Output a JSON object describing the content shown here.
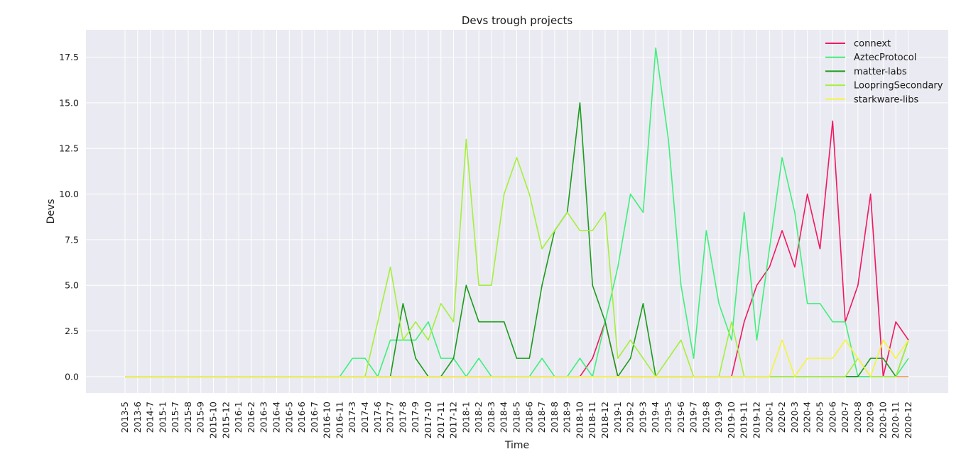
{
  "chart_data": {
    "type": "line",
    "title": "Devs trough projects",
    "xlabel": "Time",
    "ylabel": "Devs",
    "ylim": [
      -0.9,
      19.0
    ],
    "yticks": [
      0.0,
      2.5,
      5.0,
      7.5,
      10.0,
      12.5,
      15.0,
      17.5
    ],
    "ytick_labels": [
      "0.0",
      "2.5",
      "5.0",
      "7.5",
      "10.0",
      "12.5",
      "15.0",
      "17.5"
    ],
    "grid": true,
    "legend_position": "top-right",
    "categories": [
      "2013-5",
      "2013-6",
      "2014-7",
      "2015-1",
      "2015-7",
      "2015-8",
      "2015-9",
      "2015-10",
      "2015-12",
      "2016-1",
      "2016-2",
      "2016-3",
      "2016-4",
      "2016-5",
      "2016-6",
      "2016-7",
      "2016-10",
      "2016-11",
      "2017-3",
      "2017-4",
      "2017-6",
      "2017-7",
      "2017-8",
      "2017-9",
      "2017-10",
      "2017-11",
      "2017-12",
      "2018-1",
      "2018-2",
      "2018-3",
      "2018-4",
      "2018-5",
      "2018-6",
      "2018-7",
      "2018-8",
      "2018-9",
      "2018-10",
      "2018-11",
      "2018-12",
      "2019-1",
      "2019-2",
      "2019-3",
      "2019-4",
      "2019-5",
      "2019-6",
      "2019-7",
      "2019-8",
      "2019-9",
      "2019-10",
      "2019-11",
      "2019-12",
      "2020-1",
      "2020-2",
      "2020-3",
      "2020-4",
      "2020-5",
      "2020-6",
      "2020-7",
      "2020-8",
      "2020-9",
      "2020-10",
      "2020-11",
      "2020-12"
    ],
    "series": [
      {
        "name": "",
        "color": "#f7a35c",
        "values": [
          0,
          0,
          0,
          0,
          0,
          0,
          0,
          0,
          0,
          0,
          0,
          0,
          0,
          0,
          0,
          0,
          0,
          0,
          0,
          0,
          0,
          0,
          0,
          0,
          0,
          0,
          0,
          0,
          0,
          0,
          0,
          0,
          0,
          0,
          0,
          0,
          0,
          0,
          0,
          0,
          0,
          0,
          0,
          0,
          0,
          0,
          0,
          0,
          0,
          0,
          0,
          0,
          0,
          0,
          0,
          0,
          0,
          0,
          0,
          0,
          0,
          0,
          0
        ]
      },
      {
        "name": "connext",
        "color": "#f0185f",
        "values": [
          0,
          0,
          0,
          0,
          0,
          0,
          0,
          0,
          0,
          0,
          0,
          0,
          0,
          0,
          0,
          0,
          0,
          0,
          0,
          0,
          0,
          0,
          0,
          0,
          0,
          0,
          0,
          0,
          0,
          0,
          0,
          0,
          0,
          0,
          0,
          0,
          0,
          1,
          3,
          0,
          0,
          0,
          0,
          0,
          0,
          0,
          0,
          0,
          0,
          3,
          5,
          6,
          8,
          6,
          10,
          7,
          14,
          3,
          5,
          10,
          0,
          3,
          2
        ]
      },
      {
        "name": "AztecProtocol",
        "color": "#3ef07a",
        "values": [
          0,
          0,
          0,
          0,
          0,
          0,
          0,
          0,
          0,
          0,
          0,
          0,
          0,
          0,
          0,
          0,
          0,
          0,
          1,
          1,
          0,
          2,
          2,
          2,
          3,
          1,
          1,
          0,
          1,
          0,
          0,
          0,
          0,
          1,
          0,
          0,
          1,
          0,
          3,
          6,
          10,
          9,
          18,
          13,
          5,
          1,
          8,
          4,
          2,
          9,
          2,
          7,
          12,
          9,
          4,
          4,
          3,
          3,
          0,
          0,
          0,
          0,
          1
        ]
      },
      {
        "name": "matter-labs",
        "color": "#1a9c1a",
        "values": [
          0,
          0,
          0,
          0,
          0,
          0,
          0,
          0,
          0,
          0,
          0,
          0,
          0,
          0,
          0,
          0,
          0,
          0,
          0,
          0,
          0,
          0,
          4,
          1,
          0,
          0,
          1,
          5,
          3,
          3,
          3,
          1,
          1,
          5,
          8,
          9,
          15,
          5,
          3,
          0,
          1,
          4,
          0,
          0,
          0,
          0,
          0,
          0,
          0,
          0,
          0,
          0,
          0,
          0,
          0,
          0,
          0,
          0,
          0,
          1,
          1,
          0,
          2
        ]
      },
      {
        "name": "LoopringSecondary",
        "color": "#a4f03a",
        "values": [
          0,
          0,
          0,
          0,
          0,
          0,
          0,
          0,
          0,
          0,
          0,
          0,
          0,
          0,
          0,
          0,
          0,
          0,
          0,
          0,
          3,
          6,
          2,
          3,
          2,
          4,
          3,
          13,
          5,
          5,
          10,
          12,
          10,
          7,
          8,
          9,
          8,
          8,
          9,
          1,
          2,
          1,
          0,
          1,
          2,
          0,
          0,
          0,
          3,
          0,
          0,
          0,
          0,
          0,
          0,
          0,
          0,
          0,
          1,
          0,
          0,
          0,
          2
        ]
      },
      {
        "name": "starkware-libs",
        "color": "#f5f53a",
        "values": [
          0,
          0,
          0,
          0,
          0,
          0,
          0,
          0,
          0,
          0,
          0,
          0,
          0,
          0,
          0,
          0,
          0,
          0,
          0,
          0,
          0,
          0,
          0,
          0,
          0,
          0,
          0,
          0,
          0,
          0,
          0,
          0,
          0,
          0,
          0,
          0,
          0,
          0,
          0,
          0,
          0,
          0,
          0,
          0,
          0,
          0,
          0,
          0,
          0,
          0,
          0,
          0,
          2,
          0,
          1,
          1,
          1,
          2,
          1,
          0,
          2,
          1,
          2
        ]
      }
    ]
  }
}
